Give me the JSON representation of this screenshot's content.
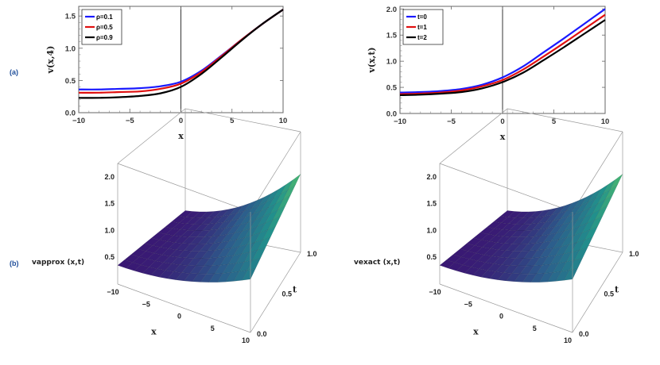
{
  "panel_labels": {
    "a": "(a)",
    "b": "(b)"
  },
  "chart_data": [
    {
      "type": "line",
      "xlabel": "x",
      "ylabel": "v(x,4)",
      "xlim": [
        -10,
        10
      ],
      "ylim": [
        0,
        1.65
      ],
      "xticks": [
        "−10",
        "−5",
        "0",
        "5",
        "10"
      ],
      "yticks": [
        "0.0",
        "0.5",
        "1.0",
        "1.5"
      ],
      "legend_position": "top-left",
      "series": [
        {
          "name": "ρ=0.1",
          "color": "#1a1aff",
          "x": [
            -10,
            -8,
            -6,
            -4,
            -2,
            0,
            2,
            4,
            6,
            8,
            10
          ],
          "y": [
            0.36,
            0.36,
            0.37,
            0.38,
            0.41,
            0.48,
            0.65,
            0.89,
            1.14,
            1.38,
            1.6
          ]
        },
        {
          "name": "ρ=0.5",
          "color": "#e01010",
          "x": [
            -10,
            -8,
            -6,
            -4,
            -2,
            0,
            2,
            4,
            6,
            8,
            10
          ],
          "y": [
            0.31,
            0.31,
            0.32,
            0.33,
            0.37,
            0.45,
            0.63,
            0.88,
            1.14,
            1.38,
            1.6
          ]
        },
        {
          "name": "ρ=0.9",
          "color": "#000000",
          "x": [
            -10,
            -8,
            -6,
            -4,
            -2,
            0,
            2,
            4,
            6,
            8,
            10
          ],
          "y": [
            0.23,
            0.23,
            0.24,
            0.26,
            0.3,
            0.4,
            0.6,
            0.86,
            1.13,
            1.38,
            1.6
          ]
        }
      ]
    },
    {
      "type": "line",
      "xlabel": "x",
      "ylabel": "v(x,t)",
      "xlim": [
        -10,
        10
      ],
      "ylim": [
        0,
        2.05
      ],
      "xticks": [
        "−10",
        "−5",
        "0",
        "5",
        "10"
      ],
      "yticks": [
        "0.0",
        "0.5",
        "1.0",
        "1.5",
        "2.0"
      ],
      "legend_position": "top-left",
      "series": [
        {
          "name": "t=0",
          "color": "#1a1aff",
          "x": [
            -10,
            -8,
            -6,
            -4,
            -2,
            0,
            2,
            4,
            6,
            8,
            10
          ],
          "y": [
            0.4,
            0.41,
            0.43,
            0.47,
            0.55,
            0.69,
            0.9,
            1.17,
            1.44,
            1.72,
            2.0
          ]
        },
        {
          "name": "t=1",
          "color": "#e01010",
          "x": [
            -10,
            -8,
            -6,
            -4,
            -2,
            0,
            2,
            4,
            6,
            8,
            10
          ],
          "y": [
            0.37,
            0.38,
            0.4,
            0.44,
            0.52,
            0.64,
            0.84,
            1.09,
            1.35,
            1.62,
            1.89
          ]
        },
        {
          "name": "t=2",
          "color": "#000000",
          "x": [
            -10,
            -8,
            -6,
            -4,
            -2,
            0,
            2,
            4,
            6,
            8,
            10
          ],
          "y": [
            0.35,
            0.36,
            0.38,
            0.41,
            0.48,
            0.6,
            0.78,
            1.02,
            1.27,
            1.53,
            1.79
          ]
        }
      ]
    },
    {
      "type": "surface",
      "zlabel": "vapprox (x,t)",
      "xlabel": "x",
      "ylabel": "t",
      "xticks": [
        "−10",
        "−5",
        "0",
        "5",
        "10"
      ],
      "yticks": [
        "0.0",
        "0.5",
        "1.0"
      ],
      "zticks": [
        "0.5",
        "1.0",
        "1.5",
        "2.0"
      ],
      "colormap": [
        "#3b0f70",
        "#2c5d8c",
        "#21918c",
        "#5ec962",
        "#dde318"
      ]
    },
    {
      "type": "surface",
      "zlabel": "vexact (x,t)",
      "xlabel": "x",
      "ylabel": "t",
      "xticks": [
        "−10",
        "−5",
        "0",
        "5",
        "10"
      ],
      "yticks": [
        "0.0",
        "0.5",
        "1.0"
      ],
      "zticks": [
        "0.5",
        "1.0",
        "1.5",
        "2.0"
      ],
      "colormap": [
        "#3b0f70",
        "#2c5d8c",
        "#21918c",
        "#5ec962",
        "#dde318"
      ]
    }
  ]
}
